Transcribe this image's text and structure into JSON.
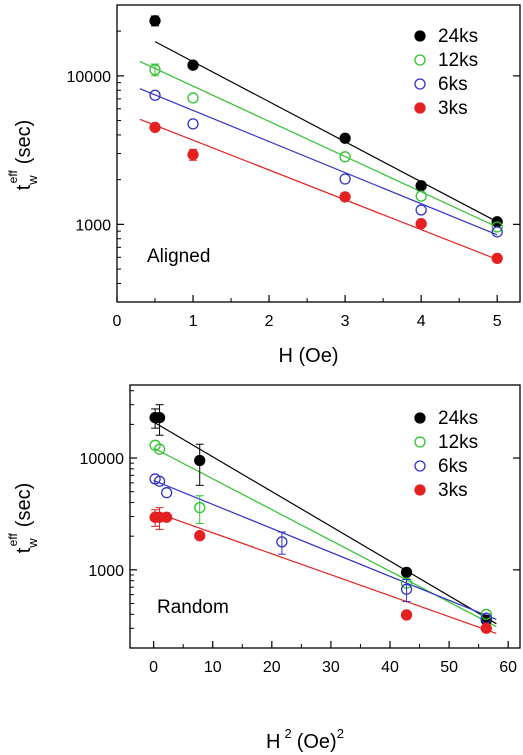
{
  "chart_data": [
    {
      "type": "scatter",
      "annotation": "Aligned",
      "xlabel": "H (Oe)",
      "ylabel": {
        "base": "t",
        "sub": "w",
        "sup": "eff",
        "unit": "(sec)"
      },
      "xlim": [
        0,
        5.3
      ],
      "ylim": [
        300,
        30000
      ],
      "yscale": "log",
      "x_ticks": [
        0,
        1,
        2,
        3,
        4,
        5
      ],
      "y_tick_labels": [
        "1000",
        "10000"
      ],
      "y_ticks": [
        1000,
        10000
      ],
      "legend_position": "top-right",
      "series": [
        {
          "name": "24ks",
          "color": "#000000",
          "filled": true,
          "points": [
            {
              "x": 0.5,
              "y": 23500,
              "err": 1800
            },
            {
              "x": 1,
              "y": 11800
            },
            {
              "x": 3,
              "y": 3800
            },
            {
              "x": 4,
              "y": 1820
            },
            {
              "x": 5,
              "y": 1040
            }
          ],
          "fit": [
            [
              0.5,
              17000
            ],
            [
              5,
              1040
            ]
          ]
        },
        {
          "name": "12ks",
          "color": "#2ec22e",
          "filled": false,
          "points": [
            {
              "x": 0.5,
              "y": 11000,
              "err": 1000
            },
            {
              "x": 1,
              "y": 7100
            },
            {
              "x": 3,
              "y": 2850
            },
            {
              "x": 4,
              "y": 1550
            },
            {
              "x": 5,
              "y": 960
            }
          ],
          "fit": [
            [
              0.3,
              12500
            ],
            [
              5,
              960
            ]
          ]
        },
        {
          "name": "6ks",
          "color": "#3232c8",
          "filled": false,
          "points": [
            {
              "x": 0.5,
              "y": 7400
            },
            {
              "x": 1,
              "y": 4750
            },
            {
              "x": 3,
              "y": 2020
            },
            {
              "x": 4,
              "y": 1250
            },
            {
              "x": 5,
              "y": 890
            }
          ],
          "fit": [
            [
              0.3,
              8200
            ],
            [
              5,
              850
            ]
          ]
        },
        {
          "name": "3ks",
          "color": "#e52020",
          "filled": true,
          "points": [
            {
              "x": 0.5,
              "y": 4500
            },
            {
              "x": 1,
              "y": 2950,
              "err": 250
            },
            {
              "x": 3,
              "y": 1530
            },
            {
              "x": 4,
              "y": 1010
            },
            {
              "x": 5,
              "y": 590
            }
          ],
          "fit": [
            [
              0.3,
              5100
            ],
            [
              5,
              580
            ]
          ]
        }
      ]
    },
    {
      "type": "scatter",
      "annotation": "Random",
      "xlabel": {
        "base": "H",
        "sup": "2",
        "unit": "(Oe)",
        "unit_sup": "2"
      },
      "ylabel": {
        "base": "t",
        "sub": "w",
        "sup": "eff",
        "unit": "(sec)"
      },
      "xlim": [
        -4,
        62
      ],
      "ylim": [
        200,
        45000
      ],
      "yscale": "log",
      "x_ticks": [
        0,
        10,
        20,
        30,
        40,
        50,
        60
      ],
      "y_tick_labels": [
        "1000",
        "10000"
      ],
      "y_ticks": [
        1000,
        10000
      ],
      "legend_position": "top-right",
      "series": [
        {
          "name": "24ks",
          "color": "#000000",
          "filled": true,
          "points": [
            {
              "x": 0.25,
              "y": 23000,
              "err": 4500
            },
            {
              "x": 1,
              "y": 23000,
              "err": 7000
            },
            {
              "x": 7.8,
              "y": 9500,
              "err": 3800
            },
            {
              "x": 42.8,
              "y": 950
            },
            {
              "x": 56.3,
              "y": 355
            }
          ],
          "fit": [
            [
              0,
              21000
            ],
            [
              58,
              330
            ]
          ]
        },
        {
          "name": "12ks",
          "color": "#2ec22e",
          "filled": false,
          "points": [
            {
              "x": 0.25,
              "y": 13000
            },
            {
              "x": 1,
              "y": 12000
            },
            {
              "x": 7.8,
              "y": 3600,
              "err": 1000
            },
            {
              "x": 42.8,
              "y": 760
            },
            {
              "x": 56.3,
              "y": 400
            }
          ],
          "fit": [
            [
              0,
              12300
            ],
            [
              58,
              310
            ]
          ]
        },
        {
          "name": "6ks",
          "color": "#3232c8",
          "filled": false,
          "points": [
            {
              "x": 0.25,
              "y": 6500
            },
            {
              "x": 1,
              "y": 6200
            },
            {
              "x": 2.2,
              "y": 4900
            },
            {
              "x": 21.7,
              "y": 1780,
              "err": 400
            },
            {
              "x": 42.8,
              "y": 670,
              "err": 150
            },
            {
              "x": 56.3,
              "y": 370
            }
          ],
          "fit": [
            [
              0,
              6300
            ],
            [
              58,
              360
            ]
          ]
        },
        {
          "name": "3ks",
          "color": "#e52020",
          "filled": true,
          "points": [
            {
              "x": 0.25,
              "y": 2950,
              "err": 500
            },
            {
              "x": 1,
              "y": 2950,
              "err": 650
            },
            {
              "x": 2.2,
              "y": 2950
            },
            {
              "x": 7.8,
              "y": 2020
            },
            {
              "x": 42.8,
              "y": 395
            },
            {
              "x": 56.3,
              "y": 300
            }
          ],
          "fit": [
            [
              0,
              3300
            ],
            [
              58,
              270
            ]
          ]
        }
      ]
    }
  ]
}
